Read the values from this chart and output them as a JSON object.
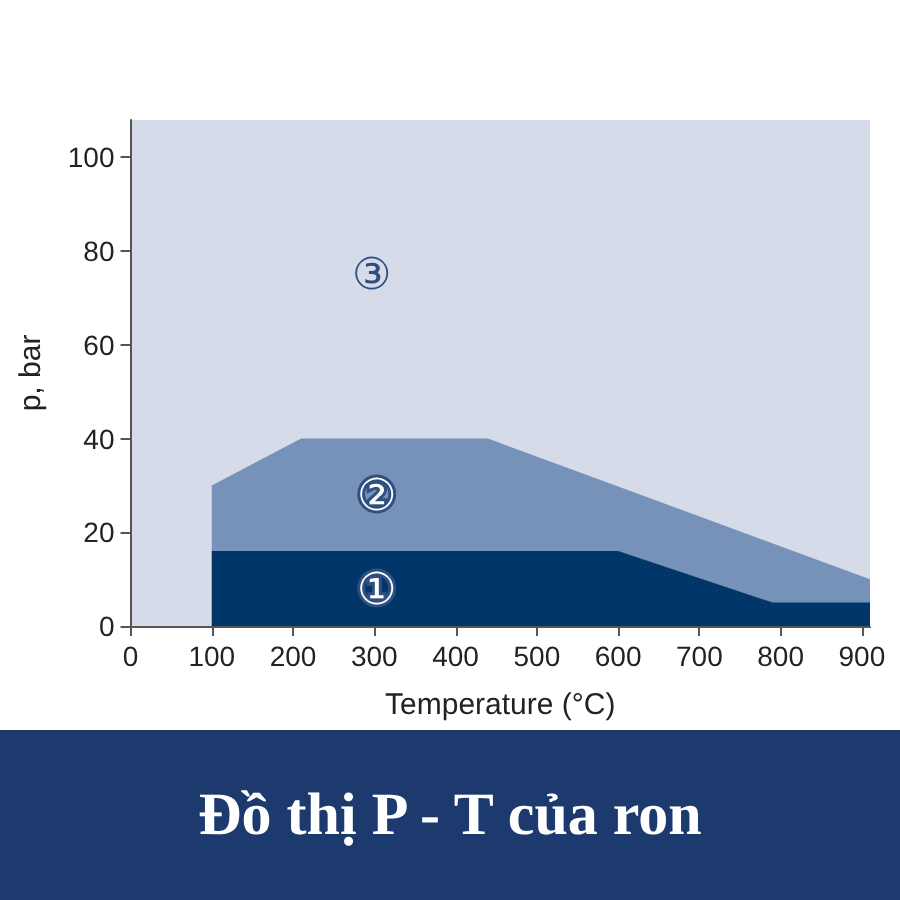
{
  "chart_data": {
    "type": "area",
    "title": "Đồ thị P - T của ron",
    "xlabel": "Temperature (°C)",
    "ylabel": "p, bar",
    "xlim": [
      0,
      910
    ],
    "xticks": [
      0,
      100,
      200,
      300,
      400,
      500,
      600,
      700,
      800,
      900
    ],
    "ylim": [
      0,
      108
    ],
    "yticks": [
      0,
      20,
      40,
      60,
      80,
      100
    ],
    "grid": false,
    "bands": [
      {
        "axis": "x",
        "from": 0,
        "to": 910,
        "color": "#d5dbe8",
        "label": "③"
      }
    ],
    "series": [
      {
        "name": "②",
        "color": "#7792b8",
        "x": [
          100,
          210,
          440,
          910
        ],
        "values": [
          30,
          40,
          40,
          10
        ]
      },
      {
        "name": "①",
        "color": "#003768",
        "x": [
          100,
          600,
          790,
          910
        ],
        "values": [
          16,
          16,
          5,
          5
        ]
      }
    ]
  }
}
